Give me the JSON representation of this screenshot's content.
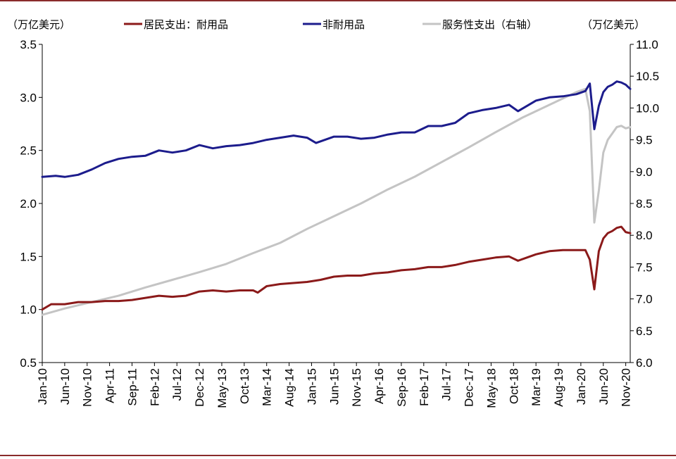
{
  "chart_data": {
    "type": "line",
    "left_unit": "（万亿美元）",
    "right_unit": "（万亿美元）",
    "left_ylim": [
      0.5,
      3.5
    ],
    "right_ylim": [
      6.0,
      11.0
    ],
    "left_ticks": [
      "0.5",
      "1.0",
      "1.5",
      "2.0",
      "2.5",
      "3.0",
      "3.5"
    ],
    "right_ticks": [
      "6.0",
      "6.5",
      "7.0",
      "7.5",
      "8.0",
      "8.5",
      "9.0",
      "9.5",
      "10.0",
      "10.5",
      "11.0"
    ],
    "x_start": "2010-01",
    "x_end": "2020-12",
    "x_tick_labels": [
      "Jan-10",
      "Jun-10",
      "Nov-10",
      "Apr-11",
      "Sep-11",
      "Feb-12",
      "Jul-12",
      "Dec-12",
      "May-13",
      "Oct-13",
      "Mar-14",
      "Aug-14",
      "Jan-15",
      "Jun-15",
      "Nov-15",
      "Apr-16",
      "Sep-16",
      "Feb-17",
      "Jul-17",
      "Dec-17",
      "May-18",
      "Oct-18",
      "Mar-19",
      "Aug-19",
      "Jan-20",
      "Jun-20",
      "Nov-20"
    ],
    "series": [
      {
        "name": "居民支出：耐用品",
        "axis": "left",
        "color": "#8b1a1a",
        "points": [
          [
            "2010-01",
            1.0
          ],
          [
            "2010-03",
            1.05
          ],
          [
            "2010-06",
            1.05
          ],
          [
            "2010-09",
            1.07
          ],
          [
            "2010-12",
            1.07
          ],
          [
            "2011-03",
            1.08
          ],
          [
            "2011-06",
            1.08
          ],
          [
            "2011-09",
            1.09
          ],
          [
            "2011-12",
            1.11
          ],
          [
            "2012-03",
            1.13
          ],
          [
            "2012-06",
            1.12
          ],
          [
            "2012-09",
            1.13
          ],
          [
            "2012-12",
            1.17
          ],
          [
            "2013-03",
            1.18
          ],
          [
            "2013-06",
            1.17
          ],
          [
            "2013-09",
            1.18
          ],
          [
            "2013-12",
            1.18
          ],
          [
            "2014-01",
            1.16
          ],
          [
            "2014-03",
            1.22
          ],
          [
            "2014-06",
            1.24
          ],
          [
            "2014-09",
            1.25
          ],
          [
            "2014-12",
            1.26
          ],
          [
            "2015-03",
            1.28
          ],
          [
            "2015-06",
            1.31
          ],
          [
            "2015-09",
            1.32
          ],
          [
            "2015-12",
            1.32
          ],
          [
            "2016-03",
            1.34
          ],
          [
            "2016-06",
            1.35
          ],
          [
            "2016-09",
            1.37
          ],
          [
            "2016-12",
            1.38
          ],
          [
            "2017-03",
            1.4
          ],
          [
            "2017-06",
            1.4
          ],
          [
            "2017-09",
            1.42
          ],
          [
            "2017-12",
            1.45
          ],
          [
            "2018-03",
            1.47
          ],
          [
            "2018-06",
            1.49
          ],
          [
            "2018-09",
            1.5
          ],
          [
            "2018-11",
            1.46
          ],
          [
            "2019-01",
            1.49
          ],
          [
            "2019-03",
            1.52
          ],
          [
            "2019-06",
            1.55
          ],
          [
            "2019-09",
            1.56
          ],
          [
            "2019-12",
            1.56
          ],
          [
            "2020-02",
            1.56
          ],
          [
            "2020-03",
            1.47
          ],
          [
            "2020-04",
            1.19
          ],
          [
            "2020-05",
            1.55
          ],
          [
            "2020-06",
            1.67
          ],
          [
            "2020-07",
            1.72
          ],
          [
            "2020-08",
            1.74
          ],
          [
            "2020-09",
            1.77
          ],
          [
            "2020-10",
            1.78
          ],
          [
            "2020-11",
            1.73
          ],
          [
            "2020-12",
            1.72
          ]
        ]
      },
      {
        "name": "非耐用品",
        "axis": "left",
        "color": "#1c1c8c",
        "points": [
          [
            "2010-01",
            2.25
          ],
          [
            "2010-04",
            2.26
          ],
          [
            "2010-06",
            2.25
          ],
          [
            "2010-09",
            2.27
          ],
          [
            "2010-12",
            2.32
          ],
          [
            "2011-03",
            2.38
          ],
          [
            "2011-06",
            2.42
          ],
          [
            "2011-09",
            2.44
          ],
          [
            "2011-12",
            2.45
          ],
          [
            "2012-03",
            2.5
          ],
          [
            "2012-06",
            2.48
          ],
          [
            "2012-09",
            2.5
          ],
          [
            "2012-12",
            2.55
          ],
          [
            "2013-03",
            2.52
          ],
          [
            "2013-06",
            2.54
          ],
          [
            "2013-09",
            2.55
          ],
          [
            "2013-12",
            2.57
          ],
          [
            "2014-03",
            2.6
          ],
          [
            "2014-06",
            2.62
          ],
          [
            "2014-09",
            2.64
          ],
          [
            "2014-12",
            2.62
          ],
          [
            "2015-02",
            2.57
          ],
          [
            "2015-06",
            2.63
          ],
          [
            "2015-09",
            2.63
          ],
          [
            "2015-12",
            2.61
          ],
          [
            "2016-03",
            2.62
          ],
          [
            "2016-06",
            2.65
          ],
          [
            "2016-09",
            2.67
          ],
          [
            "2016-12",
            2.67
          ],
          [
            "2017-03",
            2.73
          ],
          [
            "2017-06",
            2.73
          ],
          [
            "2017-09",
            2.76
          ],
          [
            "2017-12",
            2.85
          ],
          [
            "2018-03",
            2.88
          ],
          [
            "2018-06",
            2.9
          ],
          [
            "2018-09",
            2.93
          ],
          [
            "2018-11",
            2.87
          ],
          [
            "2019-01",
            2.92
          ],
          [
            "2019-03",
            2.97
          ],
          [
            "2019-06",
            3.0
          ],
          [
            "2019-09",
            3.01
          ],
          [
            "2019-12",
            3.03
          ],
          [
            "2020-02",
            3.06
          ],
          [
            "2020-03",
            3.13
          ],
          [
            "2020-04",
            2.7
          ],
          [
            "2020-05",
            2.92
          ],
          [
            "2020-06",
            3.05
          ],
          [
            "2020-07",
            3.1
          ],
          [
            "2020-08",
            3.12
          ],
          [
            "2020-09",
            3.15
          ],
          [
            "2020-10",
            3.14
          ],
          [
            "2020-11",
            3.12
          ],
          [
            "2020-12",
            3.08
          ]
        ]
      },
      {
        "name": "服务性支出（右轴）",
        "axis": "right",
        "color": "#c4c4c4",
        "points": [
          [
            "2010-01",
            6.75
          ],
          [
            "2010-06",
            6.85
          ],
          [
            "2010-12",
            6.95
          ],
          [
            "2011-06",
            7.05
          ],
          [
            "2011-12",
            7.18
          ],
          [
            "2012-06",
            7.3
          ],
          [
            "2012-12",
            7.42
          ],
          [
            "2013-06",
            7.55
          ],
          [
            "2013-12",
            7.72
          ],
          [
            "2014-06",
            7.88
          ],
          [
            "2014-12",
            8.1
          ],
          [
            "2015-06",
            8.3
          ],
          [
            "2015-12",
            8.5
          ],
          [
            "2016-06",
            8.72
          ],
          [
            "2016-12",
            8.92
          ],
          [
            "2017-06",
            9.15
          ],
          [
            "2017-12",
            9.38
          ],
          [
            "2018-06",
            9.62
          ],
          [
            "2018-12",
            9.85
          ],
          [
            "2019-06",
            10.05
          ],
          [
            "2019-12",
            10.25
          ],
          [
            "2020-02",
            10.3
          ],
          [
            "2020-03",
            9.95
          ],
          [
            "2020-04",
            8.2
          ],
          [
            "2020-05",
            8.7
          ],
          [
            "2020-06",
            9.3
          ],
          [
            "2020-07",
            9.5
          ],
          [
            "2020-08",
            9.6
          ],
          [
            "2020-09",
            9.7
          ],
          [
            "2020-10",
            9.72
          ],
          [
            "2020-11",
            9.68
          ],
          [
            "2020-12",
            9.7
          ]
        ]
      }
    ]
  }
}
